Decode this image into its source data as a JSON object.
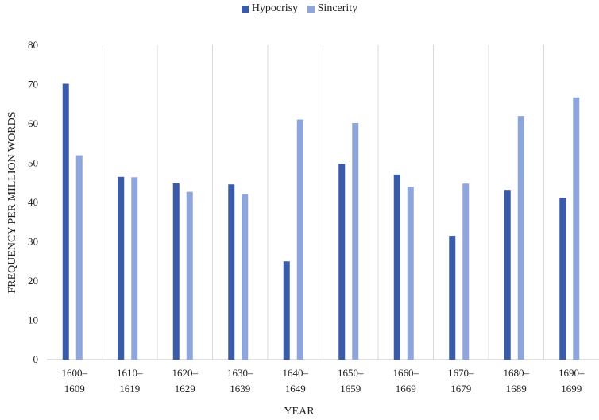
{
  "chart_data": {
    "type": "bar",
    "categories": [
      "1600–1609",
      "1610–1619",
      "1620–1629",
      "1630–1639",
      "1640–1649",
      "1650–1659",
      "1660–1669",
      "1670–1679",
      "1680–1689",
      "1690–1699"
    ],
    "series": [
      {
        "name": "Hypocrisy",
        "color": "#3a5ba8",
        "values": [
          70.2,
          46.5,
          44.9,
          44.6,
          25.0,
          49.9,
          47.1,
          31.5,
          43.2,
          41.2
        ]
      },
      {
        "name": "Sincerity",
        "color": "#8ea6dc",
        "values": [
          52.0,
          46.4,
          42.7,
          42.2,
          61.1,
          60.2,
          44.0,
          44.8,
          62.0,
          66.7
        ]
      }
    ],
    "xlabel": "YEAR",
    "ylabel": "FREQUENCY PER MILLION WORDS",
    "ylim": [
      0,
      80
    ],
    "yticks": [
      0,
      10,
      20,
      30,
      40,
      50,
      60,
      70,
      80
    ],
    "legend_position": "top-center",
    "grid": "vertical category separators"
  }
}
